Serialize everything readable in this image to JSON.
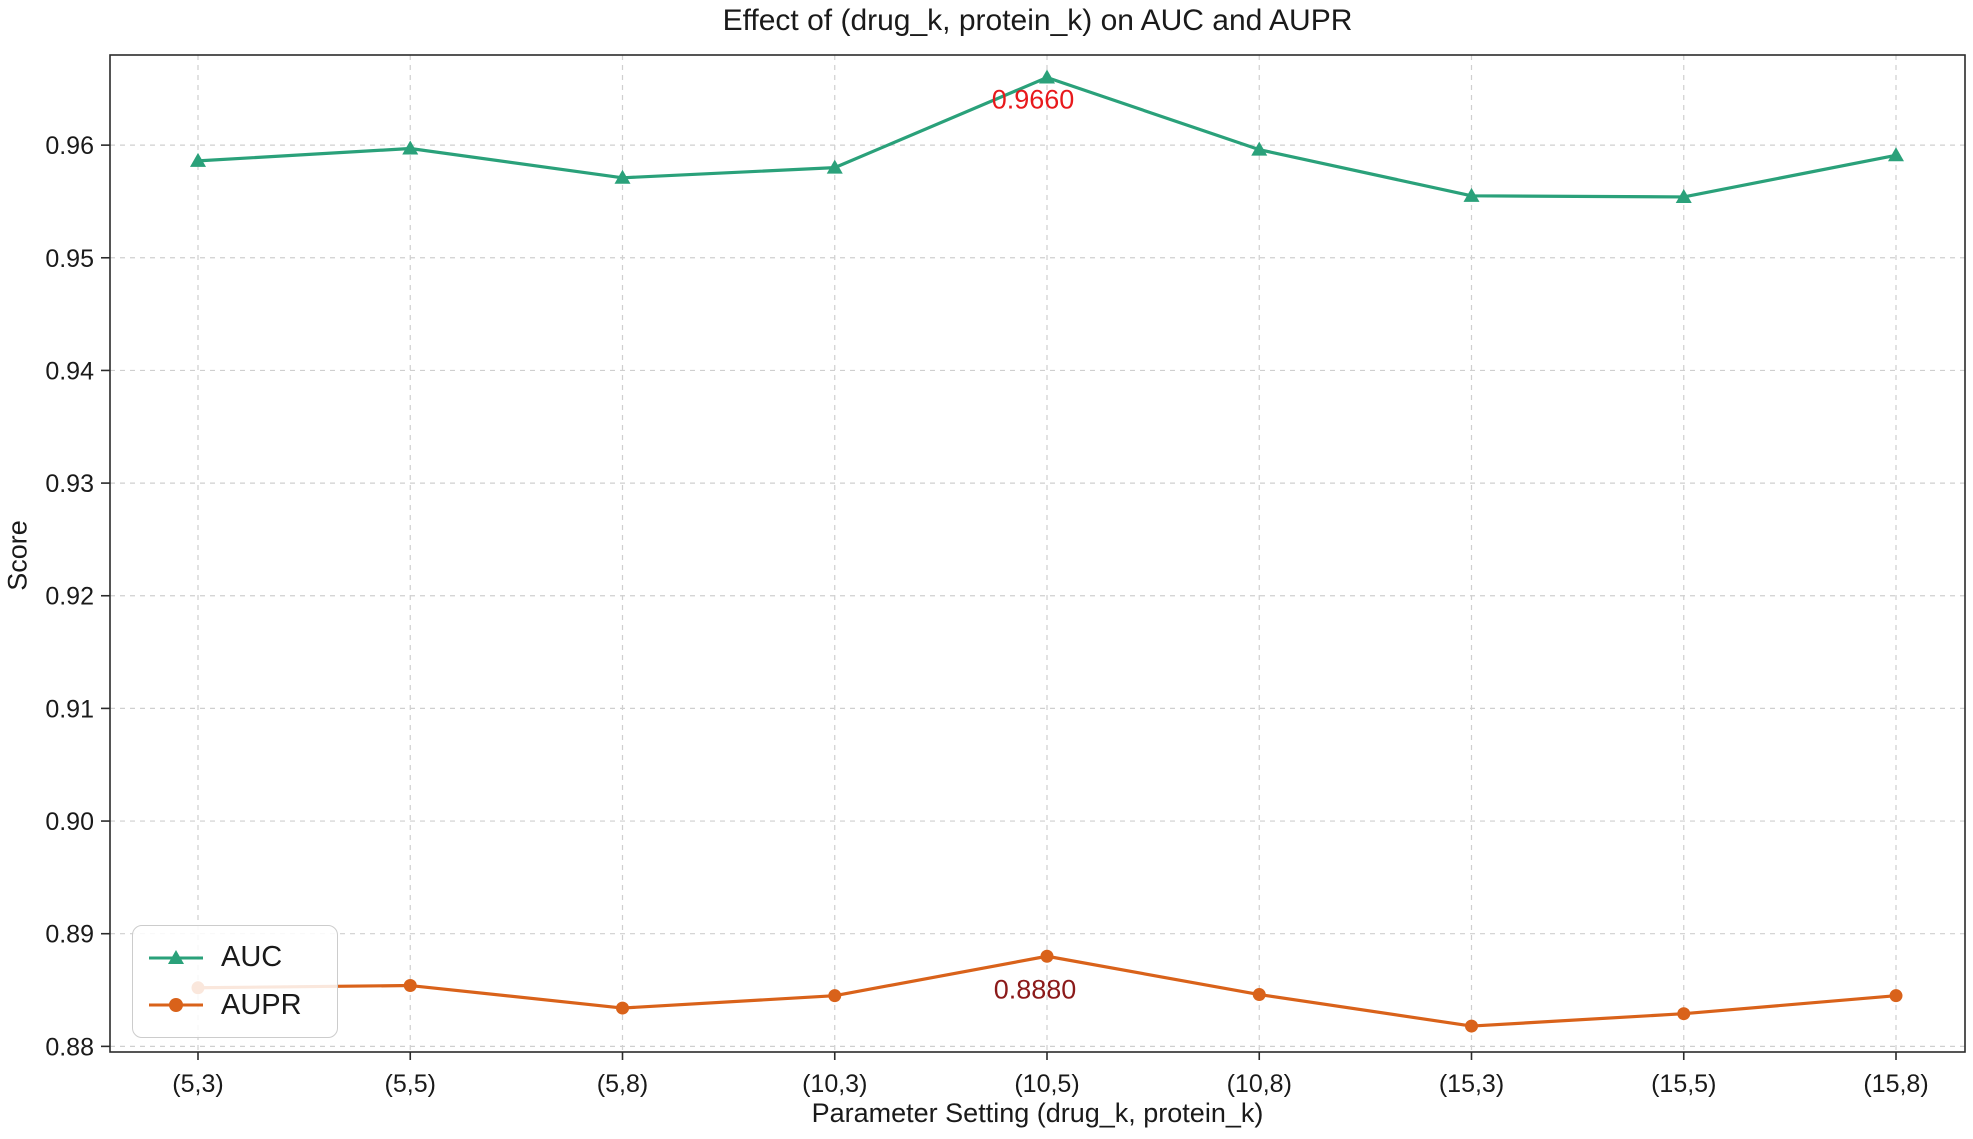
{
  "chart_data": {
    "type": "line",
    "title": "Effect of (drug_k, protein_k) on AUC and AUPR",
    "xlabel": "Parameter Setting (drug_k, protein_k)",
    "ylabel": "Score",
    "categories": [
      "(5,3)",
      "(5,5)",
      "(5,8)",
      "(10,3)",
      "(10,5)",
      "(10,8)",
      "(15,3)",
      "(15,5)",
      "(15,8)"
    ],
    "series": [
      {
        "name": "AUC",
        "color": "#2aa17a",
        "marker": "triangle",
        "values": [
          0.9586,
          0.9597,
          0.9571,
          0.958,
          0.966,
          0.9596,
          0.9555,
          0.9554,
          0.9591
        ]
      },
      {
        "name": "AUPR",
        "color": "#d9621a",
        "marker": "circle",
        "values": [
          0.8852,
          0.8854,
          0.8834,
          0.8845,
          0.888,
          0.8846,
          0.8818,
          0.8829,
          0.8845
        ]
      }
    ],
    "ylim": [
      0.8795,
      0.968
    ],
    "y_ticks": [
      "0.88",
      "0.89",
      "0.90",
      "0.91",
      "0.92",
      "0.93",
      "0.94",
      "0.95",
      "0.96"
    ],
    "grid": true,
    "legend_position": "lower left",
    "annotations": [
      {
        "text": "0.9660",
        "color": "#e8191c",
        "series": "AUC",
        "category": "(10,5)",
        "value": 0.966
      },
      {
        "text": "0.8880",
        "color": "#8b1a1a",
        "series": "AUPR",
        "category": "(10,5)",
        "value": 0.888
      }
    ]
  }
}
